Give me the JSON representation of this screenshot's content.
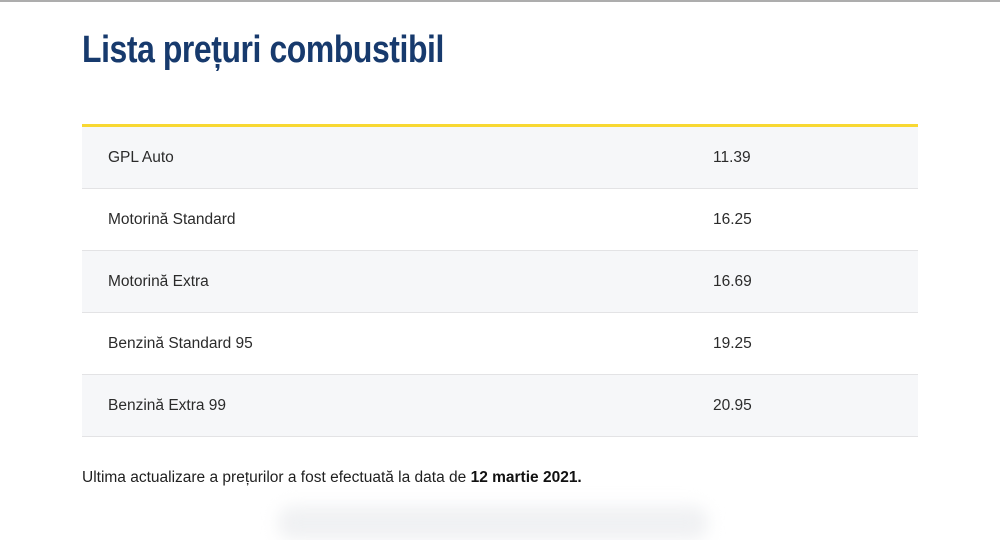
{
  "header": {
    "title": "Lista prețuri combustibil"
  },
  "price_table": {
    "rows": [
      {
        "fuel": "GPL Auto",
        "price": "11.39"
      },
      {
        "fuel": "Motorină Standard",
        "price": "16.25"
      },
      {
        "fuel": "Motorină Extra",
        "price": "16.69"
      },
      {
        "fuel": "Benzină Standard 95",
        "price": "19.25"
      },
      {
        "fuel": "Benzină Extra 99",
        "price": "20.95"
      }
    ]
  },
  "footer": {
    "update_text": "Ultima actualizare a prețurilor a fost efectuată la data de ",
    "update_date": "12 martie 2021."
  },
  "colors": {
    "title_navy": "#173a6d",
    "accent_yellow": "#f8d832",
    "row_alt_bg": "#f6f7f9",
    "row_divider": "#e3e3e5",
    "body_text": "#2b2b2b",
    "top_border": "#adadad"
  }
}
